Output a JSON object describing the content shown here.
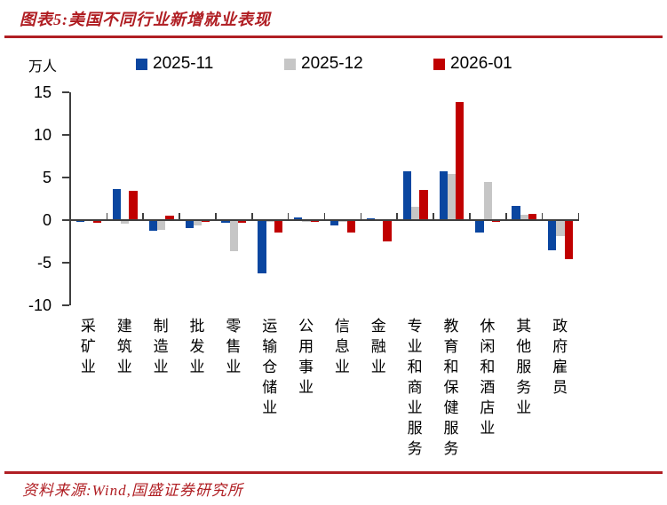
{
  "header": {
    "title": "图表5:美国不同行业新增就业表现"
  },
  "footer": {
    "source": "资料来源:Wind,国盛证券研究所"
  },
  "colors": {
    "accent_red": "#B01E23",
    "bar_blue": "#0A46A0",
    "bar_gray": "#C6C6C6",
    "bar_red": "#C00000",
    "axis_gray": "#3f3f3f"
  },
  "chart_data": {
    "type": "bar",
    "title": "图表5:美国不同行业新增就业表现",
    "unit_label": "万人",
    "ylabel": "万人",
    "xlabel": "",
    "ylim": [
      -10,
      15
    ],
    "yticks": [
      15,
      10,
      5,
      0,
      -5,
      -10
    ],
    "grid": false,
    "legend_position": "top",
    "categories": [
      "采矿业",
      "建筑业",
      "制造业",
      "批发业",
      "零售业",
      "运输仓储业",
      "公用事业",
      "信息业",
      "金融业",
      "专业和商业服务",
      "教育和保健服务",
      "休闲和酒店业",
      "其他服务业",
      "政府雇员"
    ],
    "series": [
      {
        "name": "2025-11",
        "color": "#0A46A0",
        "values": [
          -0.15,
          3.5,
          -1.1,
          -0.8,
          -0.2,
          -6.1,
          0.2,
          -0.5,
          0.1,
          5.6,
          5.6,
          -1.4,
          1.6,
          -3.4
        ]
      },
      {
        "name": "2025-12",
        "color": "#C6C6C6",
        "values": [
          0,
          -0.35,
          -1.0,
          -0.5,
          -3.5,
          -0.1,
          -0.1,
          -0.15,
          0,
          1.5,
          5.3,
          4.4,
          0.5,
          -1.8
        ]
      },
      {
        "name": "2026-01",
        "color": "#C00000",
        "values": [
          -0.2,
          3.3,
          0.4,
          -0.1,
          -0.2,
          -1.4,
          -0.1,
          -1.4,
          -2.4,
          3.4,
          13.8,
          -0.15,
          0.6,
          -4.5
        ]
      }
    ]
  }
}
